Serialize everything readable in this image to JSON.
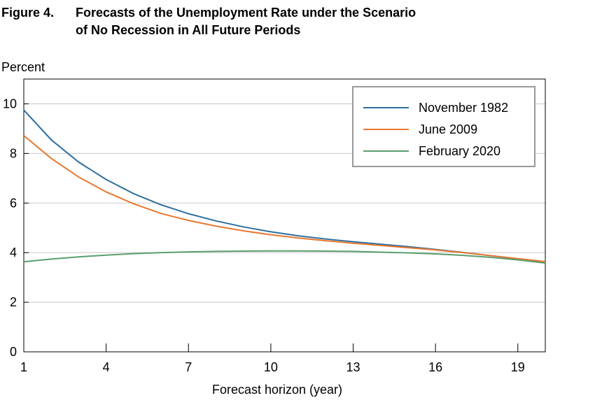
{
  "chart_data": {
    "type": "line",
    "figure_label": "Figure 4.",
    "title": [
      "Forecasts of the Unemployment Rate under the Scenario",
      "of No Recession in All Future Periods"
    ],
    "y_label": "Percent",
    "x_label": "Forecast horizon (year)",
    "x": [
      1,
      2,
      3,
      4,
      5,
      6,
      7,
      8,
      9,
      10,
      11,
      12,
      13,
      14,
      15,
      16,
      17,
      18,
      19,
      20
    ],
    "series": [
      {
        "name": "November 1982",
        "color": "#2e6f9e",
        "values": [
          9.75,
          8.55,
          7.65,
          6.95,
          6.38,
          5.93,
          5.57,
          5.28,
          5.04,
          4.84,
          4.68,
          4.55,
          4.44,
          4.34,
          4.24,
          4.13,
          4.01,
          3.88,
          3.75,
          3.62
        ]
      },
      {
        "name": "June 2009",
        "color": "#e8772e",
        "values": [
          8.72,
          7.8,
          7.05,
          6.45,
          5.97,
          5.58,
          5.3,
          5.07,
          4.88,
          4.72,
          4.59,
          4.48,
          4.38,
          4.29,
          4.2,
          4.11,
          4.0,
          3.88,
          3.76,
          3.64
        ]
      },
      {
        "name": "February 2020",
        "color": "#5a9e6f",
        "values": [
          3.63,
          3.74,
          3.83,
          3.9,
          3.96,
          4.0,
          4.03,
          4.05,
          4.06,
          4.07,
          4.07,
          4.06,
          4.05,
          4.02,
          3.99,
          3.95,
          3.89,
          3.81,
          3.71,
          3.58
        ]
      }
    ],
    "xlim": [
      1,
      20
    ],
    "xticks": [
      1,
      4,
      7,
      10,
      13,
      16,
      19
    ],
    "ylim": [
      0,
      11
    ],
    "yticks": [
      0,
      2,
      4,
      6,
      8,
      10
    ],
    "grid": true,
    "legend": "upper right"
  }
}
